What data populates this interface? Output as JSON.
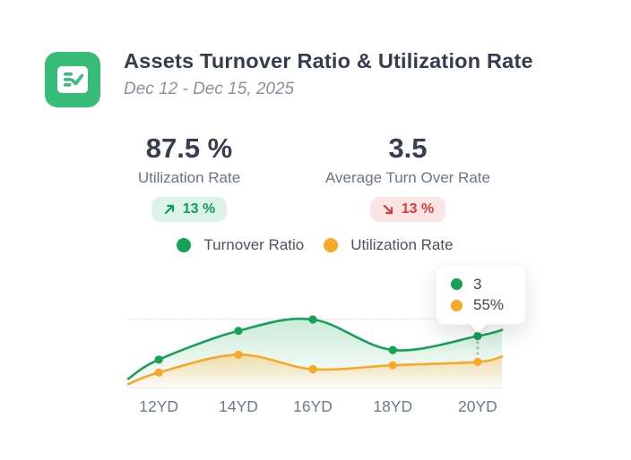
{
  "header": {
    "icon": "checklist-icon",
    "icon_bg": "#37bd78",
    "title": "Assets Turnover Ratio & Utilization Rate",
    "date_range": "Dec 12 - Dec 15, 2025"
  },
  "stats": [
    {
      "value": "87.5 %",
      "label": "Utilization Rate",
      "change": "13 %",
      "trend": "up"
    },
    {
      "value": "3.5",
      "label": "Average Turn Over Rate",
      "change": "13 %",
      "trend": "down"
    }
  ],
  "legend": [
    {
      "label": "Turnover Ratio",
      "color": "#15a255"
    },
    {
      "label": "Utilization Rate",
      "color": "#f8a827"
    }
  ],
  "tooltip": {
    "anchor_category": "20YD",
    "items": [
      {
        "series": "Turnover Ratio",
        "value": "3",
        "color": "#15a255"
      },
      {
        "series": "Utilization Rate",
        "value": "55%",
        "color": "#f8a827"
      }
    ]
  },
  "chart_data": {
    "type": "area",
    "title": "Assets Turnover Ratio & Utilization Rate",
    "categories": [
      "12YD",
      "14YD",
      "16YD",
      "18YD",
      "20YD"
    ],
    "series": [
      {
        "name": "Turnover Ratio",
        "color": "#15a255",
        "values": [
          1.65,
          3.3,
          3.95,
          2.2,
          3.0
        ],
        "ylim": [
          0,
          4
        ],
        "edge_start_value": 0.55,
        "edge_end_value": 3.35
      },
      {
        "name": "Utilization Rate",
        "color": "#f8a827",
        "values": [
          33,
          70,
          40,
          48,
          55
        ],
        "ylim": [
          0,
          145
        ],
        "edge_start_value": 9,
        "edge_end_value": 66
      }
    ],
    "highlight": {
      "category": "20YD",
      "tooltip_values": [
        "3",
        "55%"
      ]
    },
    "xlabel": "",
    "ylabel": "",
    "grid": "top and bottom horizontal lines only",
    "legend_position": "top-center",
    "smooth": true
  }
}
